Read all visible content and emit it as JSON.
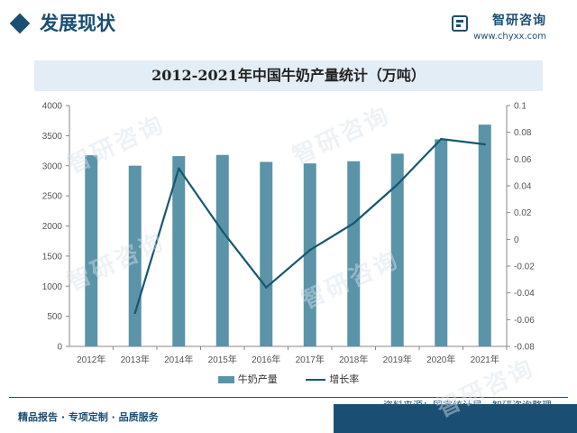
{
  "header": {
    "section_title": "发展现状",
    "brand_name": "智研咨询",
    "brand_url": "www.chyxx.com"
  },
  "footer": {
    "slogan": "精品报告 · 专项定制 · 品质服务",
    "source": "资料来源：国家统计局、智研咨询整理"
  },
  "watermark_text": "智研咨询",
  "chart_data": {
    "type": "bar",
    "title": "2012-2021年中国牛奶产量统计（万吨）",
    "categories": [
      "2012年",
      "2013年",
      "2014年",
      "2015年",
      "2016年",
      "2017年",
      "2018年",
      "2019年",
      "2020年",
      "2021年"
    ],
    "series": [
      {
        "name": "牛奶产量",
        "type": "bar",
        "axis": "left",
        "values": [
          3175,
          3001,
          3160,
          3180,
          3064,
          3039,
          3075,
          3201,
          3440,
          3683
        ],
        "color": "#5b93a9"
      },
      {
        "name": "增长率",
        "type": "line",
        "axis": "right",
        "values": [
          null,
          -0.055,
          0.053,
          0.006,
          -0.036,
          -0.008,
          0.012,
          0.041,
          0.075,
          0.071
        ],
        "color": "#17586f"
      }
    ],
    "y_left": {
      "min": 0,
      "max": 4000,
      "ticks": [
        0,
        500,
        1000,
        1500,
        2000,
        2500,
        3000,
        3500,
        4000
      ]
    },
    "y_right": {
      "min": -0.08,
      "max": 0.1,
      "ticks": [
        "-0.08",
        "-0.06",
        "-0.04",
        "-0.02",
        "0",
        "0.02",
        "0.04",
        "0.06",
        "0.08",
        "0.1"
      ]
    },
    "legend_position": "bottom",
    "grid": false
  }
}
